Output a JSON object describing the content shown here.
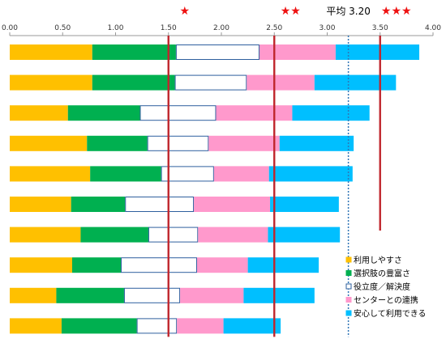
{
  "chart_data": {
    "type": "bar",
    "orientation": "horizontal",
    "stacked": true,
    "xlim": [
      0,
      4.0
    ],
    "ticks": [
      "0.00",
      "0.50",
      "1.00",
      "1.50",
      "2.00",
      "2.50",
      "3.00",
      "3.50",
      "4.00"
    ],
    "tick_values": [
      0,
      0.5,
      1.0,
      1.5,
      2.0,
      2.5,
      3.0,
      3.5,
      4.0
    ],
    "series": [
      {
        "name": "利用しやすさ",
        "color": "#ffc000",
        "border": "#ffc000",
        "values": [
          0.78,
          0.78,
          0.55,
          0.73,
          0.76,
          0.58,
          0.67,
          0.59,
          0.44,
          0.49
        ]
      },
      {
        "name": "選択肢の豊富さ",
        "color": "#00b050",
        "border": "#00b050",
        "values": [
          0.79,
          0.78,
          0.68,
          0.57,
          0.67,
          0.51,
          0.64,
          0.46,
          0.64,
          0.71
        ]
      },
      {
        "name": "役立度／解決度",
        "color": "#ffffff",
        "border": "#2e5f9e",
        "values": [
          0.79,
          0.68,
          0.72,
          0.58,
          0.5,
          0.65,
          0.47,
          0.72,
          0.53,
          0.38
        ]
      },
      {
        "name": "センターとの連携",
        "color": "#ff99cc",
        "border": "#ff99cc",
        "values": [
          0.72,
          0.64,
          0.72,
          0.67,
          0.52,
          0.72,
          0.66,
          0.48,
          0.6,
          0.44
        ]
      },
      {
        "name": "安心して利用できる",
        "color": "#00bfff",
        "border": "#00bfff",
        "values": [
          0.79,
          0.77,
          0.73,
          0.7,
          0.79,
          0.65,
          0.68,
          0.67,
          0.67,
          0.54
        ]
      }
    ],
    "reference_lines": [
      {
        "value": 1.5,
        "style": "solid",
        "color": "#c0262d",
        "label": "★"
      },
      {
        "value": 2.5,
        "style": "solid",
        "color": "#c0262d",
        "label": "★★"
      },
      {
        "value": 3.2,
        "style": "dotted",
        "color": "#2e75b6",
        "label": "平均 3.20"
      },
      {
        "value": 3.5,
        "style": "solid",
        "color": "#c0262d",
        "label": "★★★"
      }
    ],
    "legend_position": "bottom-right",
    "grid": false
  }
}
